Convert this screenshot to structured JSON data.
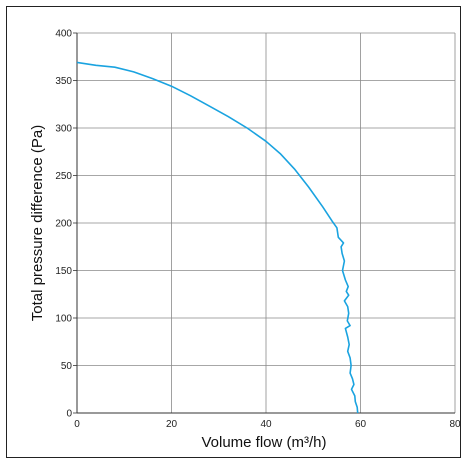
{
  "chart_data": {
    "type": "line",
    "title": "",
    "xlabel": "Volume flow (m³/h)",
    "ylabel": "Total pressure difference (Pa)",
    "xlim": [
      0,
      80
    ],
    "ylim": [
      0,
      400
    ],
    "x_ticks": [
      0,
      20,
      40,
      60,
      80
    ],
    "y_ticks": [
      0,
      50,
      100,
      150,
      200,
      250,
      300,
      350,
      400
    ],
    "grid": true,
    "series": [
      {
        "color": "#1aa3e0",
        "points": [
          [
            0,
            369
          ],
          [
            4,
            366
          ],
          [
            8,
            364
          ],
          [
            12,
            359
          ],
          [
            16,
            352
          ],
          [
            20,
            344
          ],
          [
            24,
            334
          ],
          [
            28,
            323
          ],
          [
            32,
            312
          ],
          [
            36,
            300
          ],
          [
            40,
            286
          ],
          [
            43,
            273
          ],
          [
            46,
            257
          ],
          [
            49,
            238
          ],
          [
            52,
            217
          ],
          [
            54,
            202
          ],
          [
            55.0,
            195
          ],
          [
            55.3,
            185
          ],
          [
            56.4,
            179
          ],
          [
            55.9,
            175
          ],
          [
            56.1,
            168
          ],
          [
            56.6,
            160
          ],
          [
            56.2,
            150
          ],
          [
            56.8,
            140
          ],
          [
            57.4,
            133
          ],
          [
            57.0,
            128
          ],
          [
            57.5,
            124
          ],
          [
            56.6,
            118
          ],
          [
            57.3,
            112
          ],
          [
            57.5,
            105
          ],
          [
            57.2,
            97
          ],
          [
            57.8,
            92
          ],
          [
            56.8,
            89
          ],
          [
            57.3,
            80
          ],
          [
            57.6,
            72
          ],
          [
            57.3,
            65
          ],
          [
            57.8,
            58
          ],
          [
            58.0,
            50
          ],
          [
            57.8,
            42
          ],
          [
            58.3,
            36
          ],
          [
            58.6,
            30
          ],
          [
            58.1,
            25
          ],
          [
            58.8,
            18
          ],
          [
            58.9,
            12
          ],
          [
            59.3,
            6
          ],
          [
            59.4,
            0
          ]
        ]
      }
    ]
  }
}
